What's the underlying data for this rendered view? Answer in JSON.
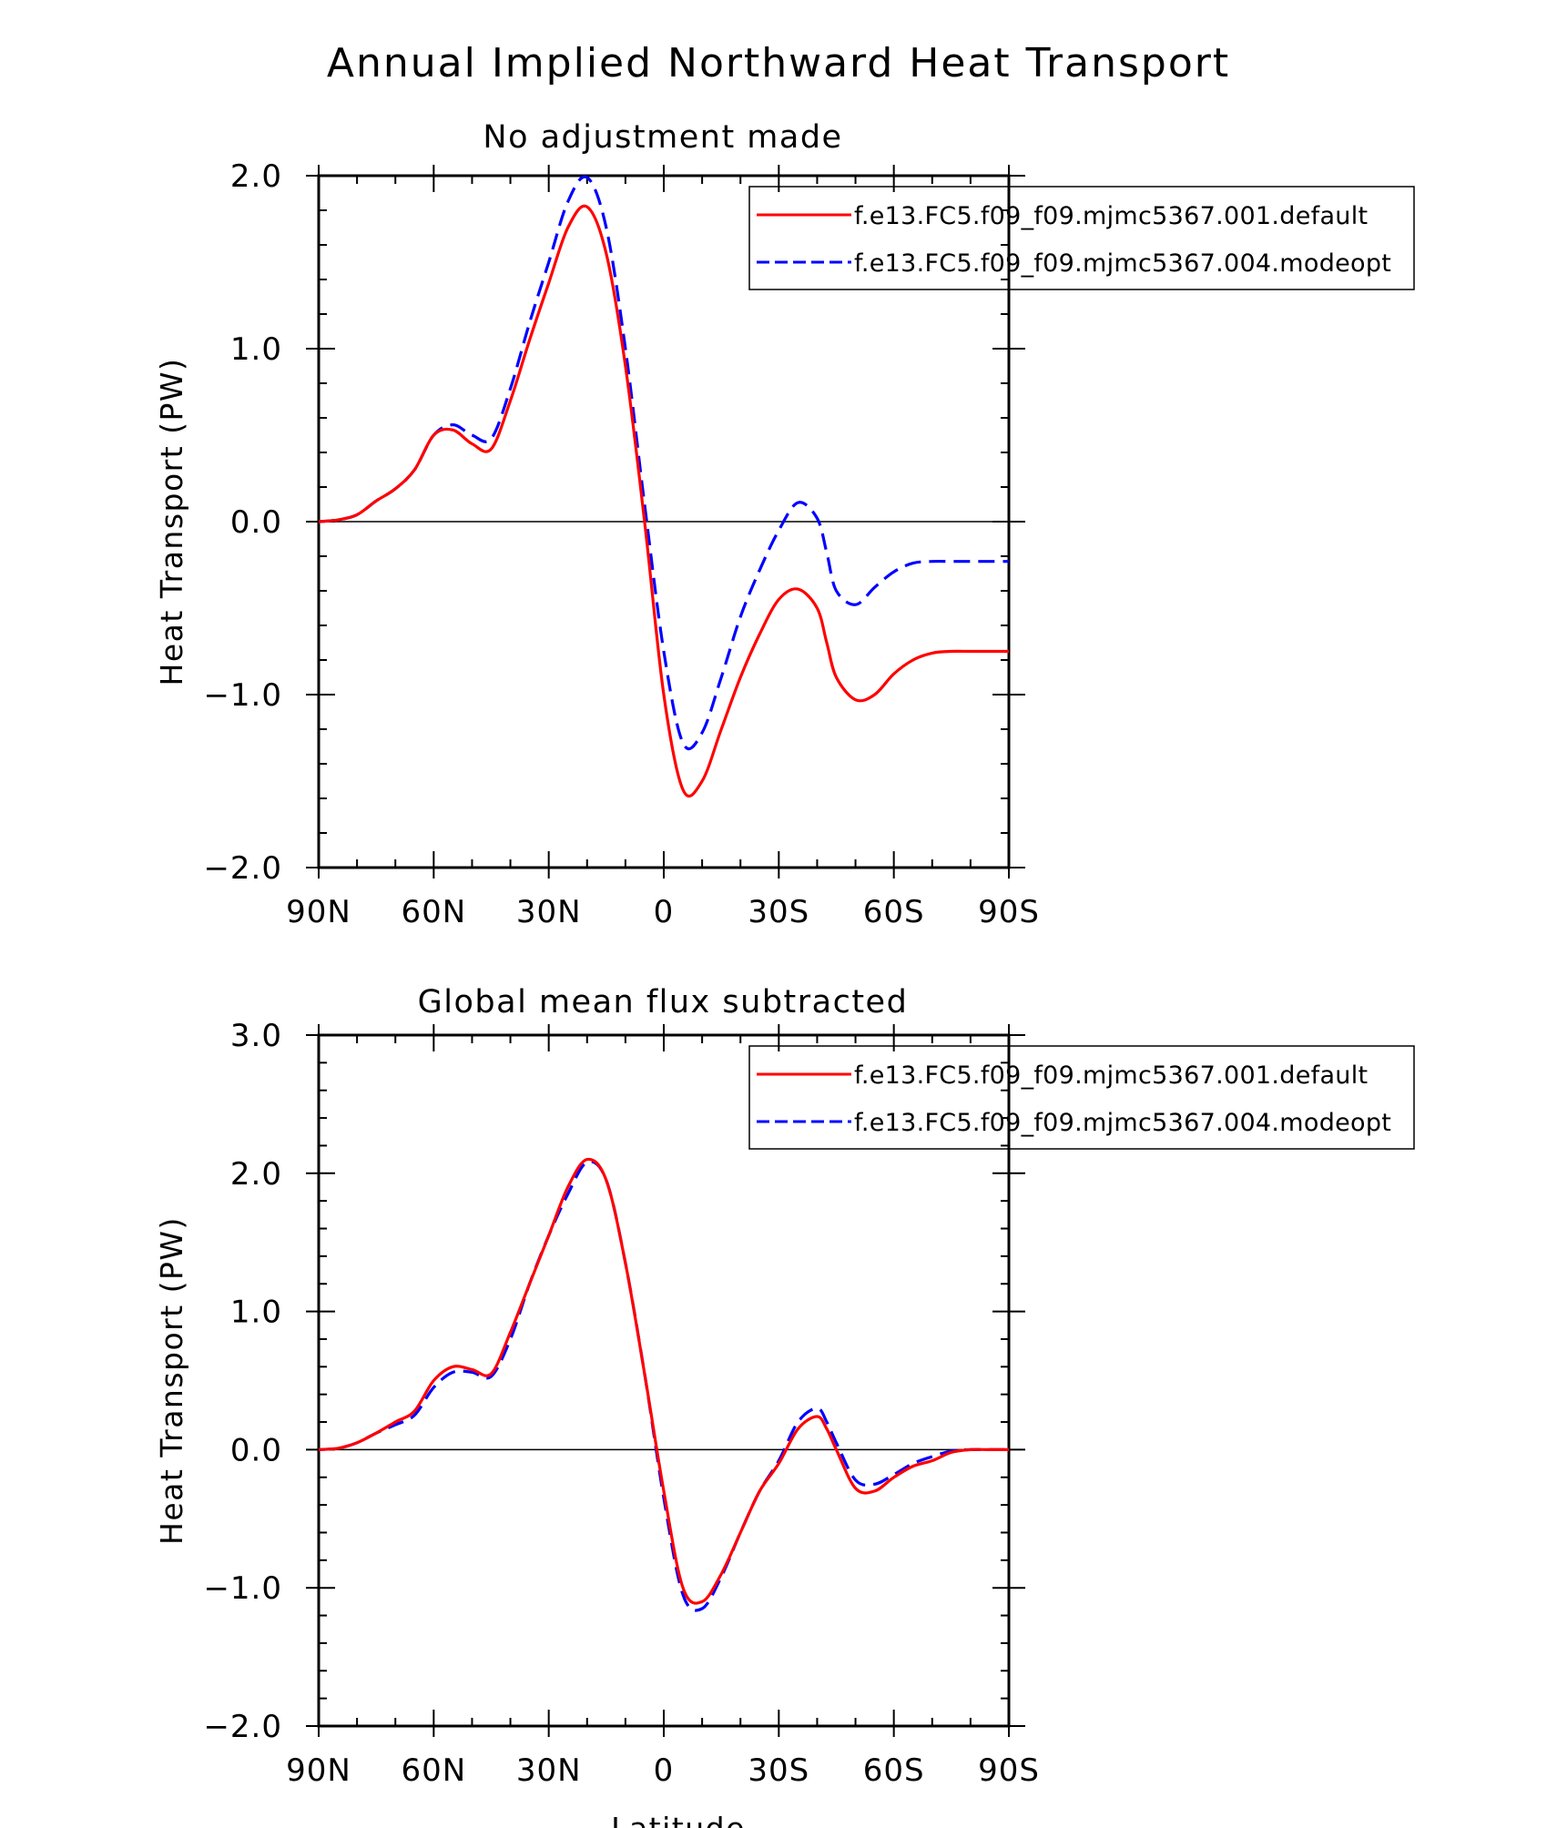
{
  "figure_title": "Annual Implied Northward Heat Transport",
  "chart_data": [
    {
      "type": "line",
      "title": "No adjustment made",
      "xlabel": "",
      "ylabel": "Heat Transport (PW)",
      "xlim": [
        -90,
        90
      ],
      "ylim": [
        -2.0,
        2.0
      ],
      "x_direction": "north-to-south",
      "xtick_values": [
        -90,
        -60,
        -30,
        0,
        30,
        60,
        90
      ],
      "xtick_labels": [
        "90N",
        "60N",
        "30N",
        "0",
        "30S",
        "60S",
        "90S"
      ],
      "ytick_values": [
        2.0,
        1.0,
        0.0,
        -1.0,
        -2.0
      ],
      "ytick_labels": [
        "2.0",
        "1.0",
        "0.0",
        "−1.0",
        "−2.0"
      ],
      "zero_line": true,
      "grid": false,
      "legend_position": "top-right",
      "x": [
        -90,
        -85,
        -80,
        -75,
        -70,
        -65,
        -60,
        -55,
        -50,
        -45,
        -40,
        -35,
        -30,
        -25,
        -20,
        -15,
        -10,
        -5,
        0,
        5,
        10,
        15,
        20,
        25,
        30,
        35,
        40,
        42.5,
        45,
        50,
        55,
        60,
        65,
        70,
        75,
        80,
        85,
        90
      ],
      "series": [
        {
          "name": "f.e13.FC5.f09_f09.mjmc5367.001.default",
          "color": "#ff0000",
          "dash": "solid",
          "values": [
            0.0,
            0.01,
            0.04,
            0.12,
            0.19,
            0.3,
            0.5,
            0.53,
            0.45,
            0.42,
            0.7,
            1.05,
            1.38,
            1.7,
            1.82,
            1.55,
            0.9,
            0.0,
            -1.0,
            -1.55,
            -1.5,
            -1.2,
            -0.9,
            -0.65,
            -0.45,
            -0.39,
            -0.5,
            -0.7,
            -0.9,
            -1.03,
            -1.0,
            -0.88,
            -0.8,
            -0.76,
            -0.75,
            -0.75,
            -0.75,
            -0.75
          ]
        },
        {
          "name": "f.e13.FC5.f09_f09.mjmc5367.004.modeopt",
          "color": "#0000ff",
          "dash": "dashed",
          "values": [
            0.0,
            0.01,
            0.04,
            0.12,
            0.19,
            0.3,
            0.5,
            0.56,
            0.5,
            0.48,
            0.77,
            1.15,
            1.5,
            1.85,
            1.99,
            1.7,
            1.0,
            0.1,
            -0.75,
            -1.28,
            -1.22,
            -0.9,
            -0.55,
            -0.28,
            -0.05,
            0.11,
            0.02,
            -0.18,
            -0.4,
            -0.48,
            -0.38,
            -0.29,
            -0.24,
            -0.23,
            -0.23,
            -0.23,
            -0.23,
            -0.23
          ]
        }
      ]
    },
    {
      "type": "line",
      "title": "Global mean flux subtracted",
      "xlabel": "Latitude",
      "ylabel": "Heat Transport (PW)",
      "xlim": [
        -90,
        90
      ],
      "ylim": [
        -2.0,
        3.0
      ],
      "x_direction": "north-to-south",
      "xtick_values": [
        -90,
        -60,
        -30,
        0,
        30,
        60,
        90
      ],
      "xtick_labels": [
        "90N",
        "60N",
        "30N",
        "0",
        "30S",
        "60S",
        "90S"
      ],
      "ytick_values": [
        3.0,
        2.0,
        1.0,
        0.0,
        -1.0,
        -2.0
      ],
      "ytick_labels": [
        "3.0",
        "2.0",
        "1.0",
        "0.0",
        "−1.0",
        "−2.0"
      ],
      "zero_line": true,
      "grid": false,
      "legend_position": "top-right",
      "x": [
        -90,
        -85,
        -80,
        -75,
        -70,
        -65,
        -60,
        -55,
        -50,
        -45,
        -40,
        -35,
        -30,
        -25,
        -20,
        -15,
        -10,
        -5,
        0,
        5,
        10,
        15,
        20,
        25,
        30,
        35,
        40,
        42.5,
        45,
        50,
        55,
        60,
        65,
        70,
        75,
        80,
        85,
        90
      ],
      "series": [
        {
          "name": "f.e13.FC5.f09_f09.mjmc5367.001.default",
          "color": "#ff0000",
          "dash": "solid",
          "values": [
            0.0,
            0.01,
            0.05,
            0.12,
            0.2,
            0.28,
            0.5,
            0.6,
            0.58,
            0.55,
            0.85,
            1.2,
            1.55,
            1.9,
            2.1,
            1.95,
            1.35,
            0.55,
            -0.3,
            -1.0,
            -1.1,
            -0.9,
            -0.6,
            -0.3,
            -0.1,
            0.15,
            0.24,
            0.15,
            0.0,
            -0.28,
            -0.3,
            -0.2,
            -0.12,
            -0.08,
            -0.02,
            0.0,
            0.0,
            0.0
          ]
        },
        {
          "name": "f.e13.FC5.f09_f09.mjmc5367.004.modeopt",
          "color": "#0000ff",
          "dash": "dashed",
          "values": [
            0.0,
            0.01,
            0.05,
            0.12,
            0.18,
            0.25,
            0.45,
            0.56,
            0.56,
            0.53,
            0.8,
            1.2,
            1.55,
            1.85,
            2.08,
            1.95,
            1.35,
            0.55,
            -0.35,
            -1.05,
            -1.15,
            -0.92,
            -0.6,
            -0.3,
            -0.08,
            0.2,
            0.3,
            0.2,
            0.05,
            -0.22,
            -0.25,
            -0.18,
            -0.1,
            -0.05,
            -0.01,
            0.0,
            0.0,
            0.0
          ]
        }
      ]
    }
  ]
}
